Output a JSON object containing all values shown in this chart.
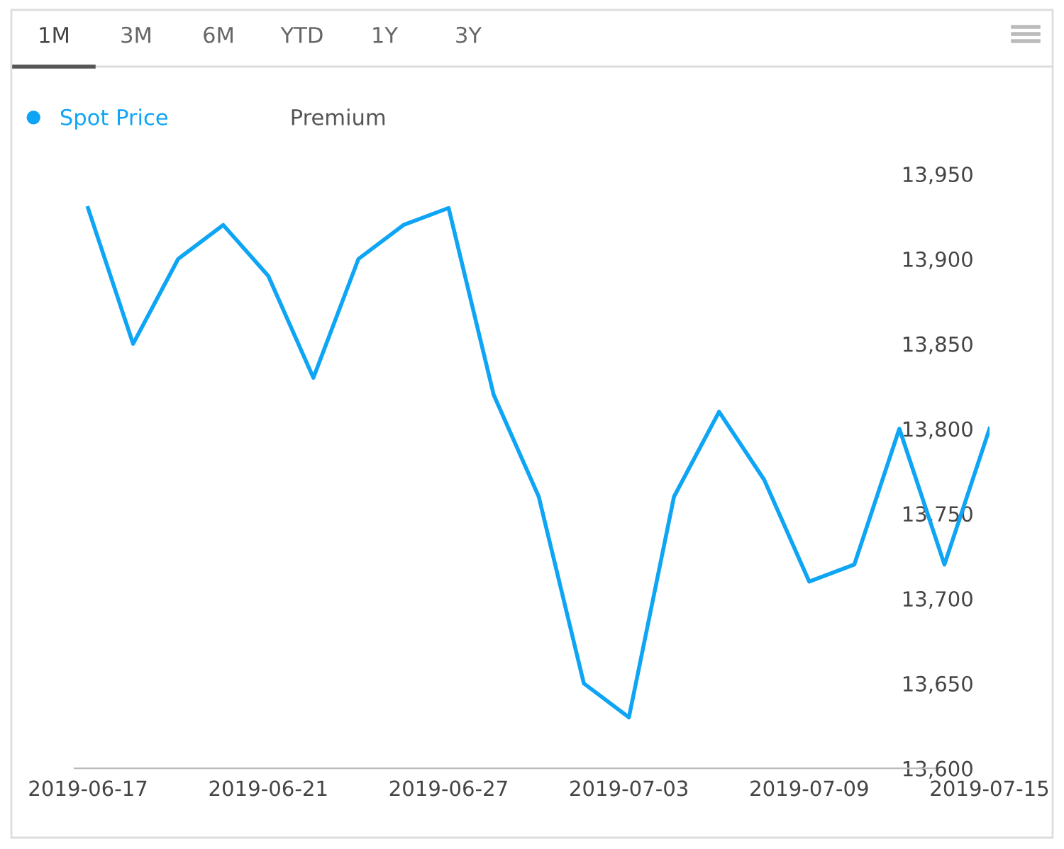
{
  "chart_data": {
    "type": "line",
    "categories": [
      "2019-06-17",
      null,
      null,
      null,
      "2019-06-21",
      null,
      null,
      null,
      "2019-06-27",
      null,
      null,
      null,
      "2019-07-03",
      null,
      null,
      null,
      "2019-07-09",
      null,
      null,
      null,
      "2019-07-15"
    ],
    "series": [
      {
        "name": "Spot Price",
        "color": "#0ea5f5",
        "values": [
          13930,
          13850,
          13900,
          13920,
          13890,
          13830,
          13900,
          13920,
          13930,
          13820,
          13760,
          13650,
          13630,
          13760,
          13810,
          13770,
          13710,
          13720,
          13800,
          13720,
          13800
        ]
      },
      {
        "name": "Premium",
        "color": "#555555",
        "values": [
          null,
          null,
          null,
          null,
          null,
          null,
          null,
          null,
          null,
          null,
          null,
          null,
          null,
          null,
          null,
          null,
          null,
          null,
          null,
          null,
          null
        ]
      }
    ],
    "ylim": [
      13600,
      13950
    ],
    "yticks": [
      {
        "value": 13600,
        "label": "13,600"
      },
      {
        "value": 13650,
        "label": "13,650"
      },
      {
        "value": 13700,
        "label": "13,700"
      },
      {
        "value": 13750,
        "label": "13,750"
      },
      {
        "value": 13800,
        "label": "13,800"
      },
      {
        "value": 13850,
        "label": "13,850"
      },
      {
        "value": 13900,
        "label": "13,900"
      },
      {
        "value": 13950,
        "label": "13,950"
      }
    ],
    "grid": false,
    "legend": "top left",
    "marker": "none",
    "line_style": "solid",
    "annotations": [
      "1M",
      "3M",
      "6M",
      "YTD",
      "1Y",
      "3Y"
    ]
  }
}
